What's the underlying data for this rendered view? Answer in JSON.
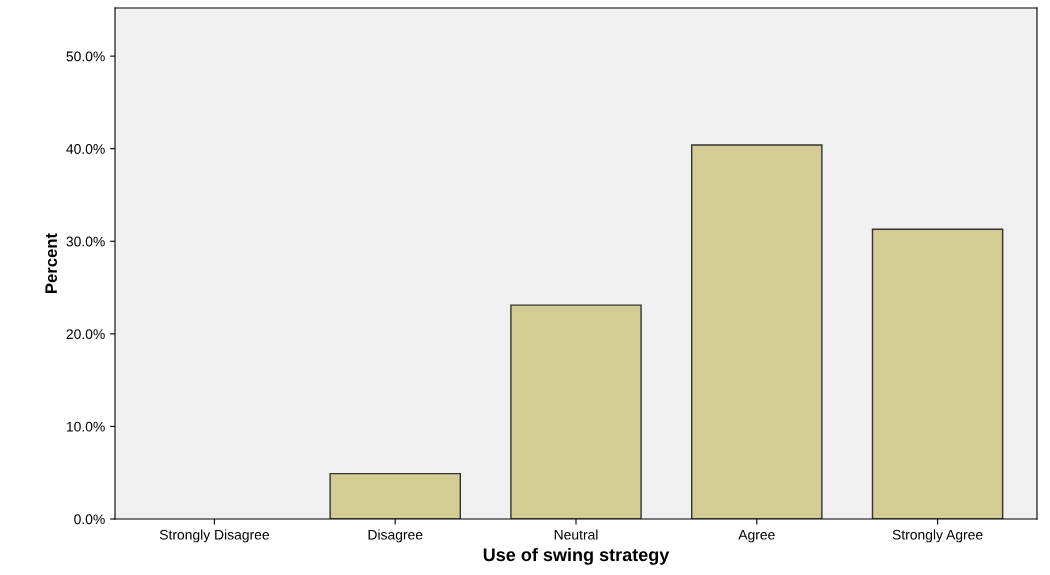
{
  "chart_data": {
    "type": "bar",
    "xlabel": "Use of swing strategy",
    "ylabel": "Percent",
    "categories": [
      "Strongly Disagree",
      "Disagree",
      "Neutral",
      "Agree",
      "Strongly Agree"
    ],
    "values": [
      0,
      4.9,
      23.1,
      40.4,
      31.3
    ],
    "color": "#d3cd94",
    "ylim": [
      0,
      55.2
    ],
    "yticks": [
      {
        "value": 0,
        "label": "0.0%"
      },
      {
        "value": 10,
        "label": "10.0%"
      },
      {
        "value": 20,
        "label": "20.0%"
      },
      {
        "value": 30,
        "label": "30.0%"
      },
      {
        "value": 40,
        "label": "40.0%"
      },
      {
        "value": 50,
        "label": "50.0%"
      }
    ],
    "grid": false,
    "legend": false
  }
}
